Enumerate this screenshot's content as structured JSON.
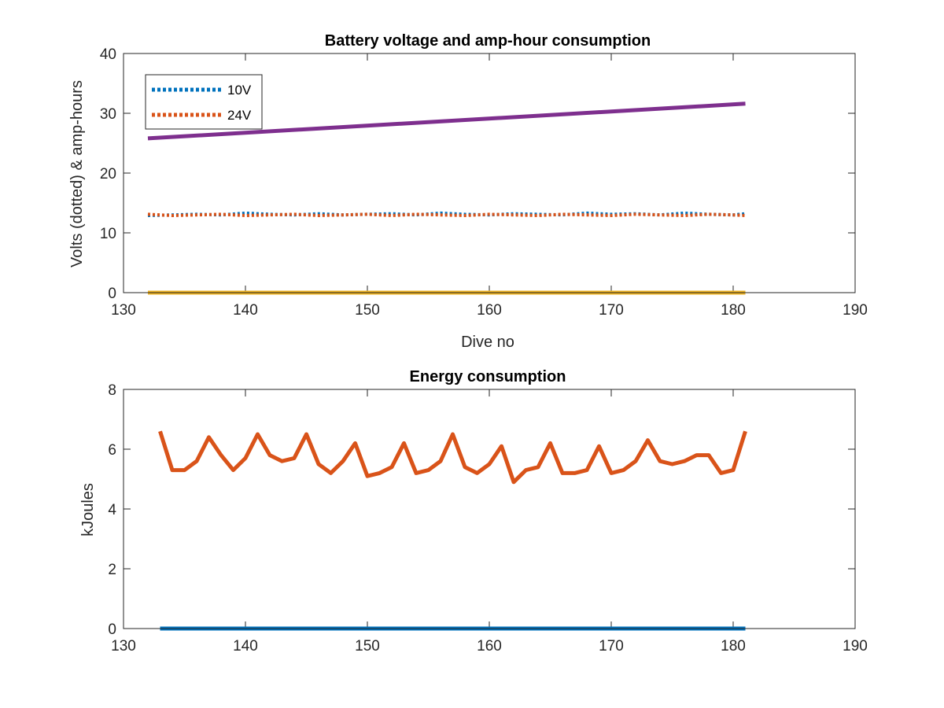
{
  "chart_data": [
    {
      "type": "line",
      "title": "Battery voltage and amp-hour consumption",
      "xlabel": "Dive no",
      "ylabel": "Volts (dotted) & amp-hours",
      "xlim": [
        130,
        190
      ],
      "ylim": [
        0,
        40
      ],
      "xticks": [
        130,
        140,
        150,
        160,
        170,
        180,
        190
      ],
      "yticks": [
        0,
        10,
        20,
        30,
        40
      ],
      "legend": {
        "placement": "top-left",
        "entries": [
          "10V",
          "24V"
        ]
      },
      "series": [
        {
          "name": "10V",
          "style": "dotted",
          "color": "#0072BD",
          "x": [
            132,
            134,
            136,
            138,
            140,
            142,
            144,
            146,
            148,
            150,
            152,
            154,
            156,
            158,
            160,
            162,
            164,
            166,
            168,
            170,
            172,
            174,
            176,
            178,
            180,
            181
          ],
          "y": [
            12.9,
            13.0,
            13.1,
            13.0,
            13.3,
            13.1,
            13.0,
            13.2,
            13.0,
            13.1,
            13.2,
            13.0,
            13.3,
            13.1,
            13.0,
            13.2,
            13.1,
            13.0,
            13.3,
            13.1,
            13.2,
            13.0,
            13.3,
            13.1,
            13.0,
            13.2
          ]
        },
        {
          "name": "24V",
          "style": "dotted",
          "color": "#D95319",
          "x": [
            132,
            134,
            136,
            138,
            140,
            142,
            144,
            146,
            148,
            150,
            152,
            154,
            156,
            158,
            160,
            162,
            164,
            166,
            168,
            170,
            172,
            174,
            176,
            178,
            180,
            181
          ],
          "y": [
            13.1,
            12.9,
            13.0,
            13.1,
            12.9,
            13.0,
            13.1,
            12.9,
            13.0,
            13.1,
            12.9,
            13.1,
            13.0,
            12.9,
            13.1,
            13.0,
            12.9,
            13.1,
            13.0,
            12.9,
            13.1,
            13.0,
            12.9,
            13.1,
            13.0,
            12.9
          ]
        },
        {
          "style": "solid",
          "color": "#7E2F8E",
          "x": [
            132,
            181
          ],
          "y": [
            25.8,
            31.6
          ]
        },
        {
          "style": "solid",
          "color": "#EDB120",
          "x": [
            132,
            181
          ],
          "y": [
            0,
            0
          ]
        }
      ]
    },
    {
      "type": "line",
      "title": "Energy consumption",
      "xlabel": "",
      "ylabel": "kJoules",
      "xlim": [
        130,
        190
      ],
      "ylim": [
        0,
        8
      ],
      "xticks": [
        130,
        140,
        150,
        160,
        170,
        180,
        190
      ],
      "yticks": [
        0,
        2,
        4,
        6,
        8
      ],
      "series": [
        {
          "style": "solid",
          "color": "#D95319",
          "x": [
            133,
            134,
            135,
            136,
            137,
            138,
            139,
            140,
            141,
            142,
            143,
            144,
            145,
            146,
            147,
            148,
            149,
            150,
            151,
            152,
            153,
            154,
            155,
            156,
            157,
            158,
            159,
            160,
            161,
            162,
            163,
            164,
            165,
            166,
            167,
            168,
            169,
            170,
            171,
            172,
            173,
            174,
            175,
            176,
            177,
            178,
            179,
            180,
            181
          ],
          "y": [
            6.6,
            5.3,
            5.3,
            5.6,
            6.4,
            5.8,
            5.3,
            5.7,
            6.5,
            5.8,
            5.6,
            5.7,
            6.5,
            5.5,
            5.2,
            5.6,
            6.2,
            5.1,
            5.2,
            5.4,
            6.2,
            5.2,
            5.3,
            5.6,
            6.5,
            5.4,
            5.2,
            5.5,
            6.1,
            4.9,
            5.3,
            5.4,
            6.2,
            5.2,
            5.2,
            5.3,
            6.1,
            5.2,
            5.3,
            5.6,
            6.3,
            5.6,
            5.5,
            5.6,
            5.8,
            5.8,
            5.2,
            5.3,
            6.6
          ]
        },
        {
          "style": "solid",
          "color": "#0072BD",
          "x": [
            133,
            181
          ],
          "y": [
            0,
            0
          ]
        }
      ]
    }
  ]
}
